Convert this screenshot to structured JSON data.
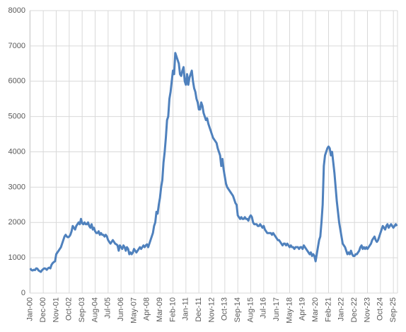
{
  "chart_data": {
    "type": "line",
    "color": "#4f81bd",
    "grid": true,
    "ylim": [
      0,
      8000
    ],
    "yticks": [
      0,
      1000,
      2000,
      3000,
      4000,
      5000,
      6000,
      7000,
      8000
    ],
    "categories": [
      "Jan-00",
      null,
      null,
      null,
      null,
      null,
      null,
      null,
      null,
      null,
      null,
      "Dec-00",
      null,
      null,
      null,
      null,
      null,
      null,
      null,
      null,
      null,
      null,
      "Nov-01",
      null,
      null,
      null,
      null,
      null,
      null,
      null,
      null,
      null,
      null,
      "Oct-02",
      null,
      null,
      null,
      null,
      null,
      null,
      null,
      null,
      null,
      null,
      "Sep-03",
      null,
      null,
      null,
      null,
      null,
      null,
      null,
      null,
      null,
      null,
      "Aug-04",
      null,
      null,
      null,
      null,
      null,
      null,
      null,
      null,
      null,
      null,
      "Jul-05",
      null,
      null,
      null,
      null,
      null,
      null,
      null,
      null,
      null,
      null,
      "Jun-06",
      null,
      null,
      null,
      null,
      null,
      null,
      null,
      null,
      null,
      null,
      "May-07",
      null,
      null,
      null,
      null,
      null,
      null,
      null,
      null,
      null,
      null,
      "Apr-08",
      null,
      null,
      null,
      null,
      null,
      null,
      null,
      null,
      null,
      null,
      "Mar-09",
      null,
      null,
      null,
      null,
      null,
      null,
      null,
      null,
      null,
      null,
      "Feb-10",
      null,
      null,
      null,
      null,
      null,
      null,
      null,
      null,
      null,
      null,
      "Jan-11",
      null,
      null,
      null,
      null,
      null,
      null,
      null,
      null,
      null,
      null,
      "Dec-11",
      null,
      null,
      null,
      null,
      null,
      null,
      null,
      null,
      null,
      null,
      "Nov-12",
      null,
      null,
      null,
      null,
      null,
      null,
      null,
      null,
      null,
      null,
      "Oct-13",
      null,
      null,
      null,
      null,
      null,
      null,
      null,
      null,
      null,
      null,
      "Sep-14",
      null,
      null,
      null,
      null,
      null,
      null,
      null,
      null,
      null,
      null,
      "Aug-15",
      null,
      null,
      null,
      null,
      null,
      null,
      null,
      null,
      null,
      null,
      "Jul-16",
      null,
      null,
      null,
      null,
      null,
      null,
      null,
      null,
      null,
      null,
      "Jun-17",
      null,
      null,
      null,
      null,
      null,
      null,
      null,
      null,
      null,
      null,
      "May-18",
      null,
      null,
      null,
      null,
      null,
      null,
      null,
      null,
      null,
      null,
      "Apr-19",
      null,
      null,
      null,
      null,
      null,
      null,
      null,
      null,
      null,
      null,
      "Mar-20",
      null,
      null,
      null,
      null,
      null,
      null,
      null,
      null,
      null,
      null,
      "Feb-21",
      null,
      null,
      null,
      null,
      null,
      null,
      null,
      null,
      null,
      null,
      "Jan-22",
      null,
      null,
      null,
      null,
      null,
      null,
      null,
      null,
      null,
      null,
      "Dec-22",
      null,
      null,
      null,
      null,
      null,
      null,
      null,
      null,
      null,
      null,
      "Nov-23",
      null,
      null,
      null,
      null,
      null,
      null,
      null,
      null,
      null,
      null,
      "Oct-24",
      null,
      null,
      null,
      null,
      null,
      null,
      null,
      null,
      null,
      null,
      "Sep-25",
      null,
      null,
      null
    ],
    "values": [
      700,
      650,
      640,
      660,
      650,
      700,
      690,
      640,
      620,
      600,
      650,
      680,
      700,
      690,
      660,
      700,
      720,
      700,
      800,
      850,
      880,
      900,
      1100,
      1150,
      1200,
      1250,
      1300,
      1400,
      1500,
      1600,
      1650,
      1600,
      1580,
      1600,
      1650,
      1750,
      1900,
      1850,
      1800,
      1900,
      1950,
      2000,
      1950,
      2100,
      1980,
      1950,
      2000,
      1950,
      1950,
      2000,
      1900,
      1850,
      1950,
      1800,
      1850,
      1750,
      1700,
      1700,
      1750,
      1650,
      1700,
      1650,
      1650,
      1600,
      1650,
      1600,
      1500,
      1450,
      1400,
      1450,
      1500,
      1450,
      1400,
      1380,
      1350,
      1200,
      1350,
      1300,
      1250,
      1350,
      1300,
      1200,
      1300,
      1250,
      1100,
      1150,
      1100,
      1150,
      1250,
      1200,
      1150,
      1200,
      1250,
      1300,
      1250,
      1300,
      1350,
      1300,
      1350,
      1380,
      1300,
      1400,
      1500,
      1600,
      1700,
      1900,
      2000,
      2300,
      2250,
      2500,
      2700,
      3000,
      3200,
      3700,
      4000,
      4400,
      4900,
      5000,
      5500,
      5700,
      6000,
      6300,
      6200,
      6800,
      6700,
      6600,
      6500,
      6200,
      6150,
      6300,
      6400,
      6000,
      5900,
      6200,
      5900,
      6100,
      6200,
      6300,
      6000,
      5800,
      5700,
      5500,
      5400,
      5200,
      5200,
      5400,
      5300,
      5100,
      5000,
      4900,
      4950,
      4800,
      4700,
      4600,
      4500,
      4400,
      4350,
      4300,
      4250,
      4100,
      4000,
      3900,
      3600,
      3800,
      3500,
      3300,
      3100,
      3000,
      2950,
      2900,
      2850,
      2800,
      2750,
      2650,
      2550,
      2500,
      2200,
      2150,
      2100,
      2150,
      2100,
      2100,
      2150,
      2100,
      2100,
      2050,
      2150,
      2200,
      2150,
      2000,
      1950,
      1950,
      1950,
      1900,
      1900,
      1950,
      1900,
      1850,
      1900,
      1800,
      1750,
      1700,
      1700,
      1700,
      1700,
      1650,
      1700,
      1650,
      1600,
      1550,
      1500,
      1500,
      1450,
      1400,
      1350,
      1400,
      1400,
      1350,
      1400,
      1350,
      1300,
      1350,
      1300,
      1300,
      1250,
      1300,
      1300,
      1300,
      1250,
      1300,
      1300,
      1250,
      1350,
      1300,
      1250,
      1200,
      1150,
      1100,
      1150,
      1050,
      1100,
      1050,
      900,
      1100,
      1300,
      1500,
      1600,
      2000,
      2500,
      3600,
      3900,
      4000,
      4100,
      4150,
      4100,
      3900,
      4000,
      3700,
      3400,
      3000,
      2600,
      2300,
      2000,
      1800,
      1600,
      1400,
      1350,
      1300,
      1200,
      1100,
      1150,
      1100,
      1200,
      1100,
      1050,
      1050,
      1100,
      1100,
      1150,
      1200,
      1300,
      1350,
      1250,
      1300,
      1250,
      1300,
      1250,
      1300,
      1350,
      1400,
      1500,
      1550,
      1600,
      1500,
      1450,
      1500,
      1600,
      1700,
      1800,
      1900,
      1850,
      1800,
      1900,
      1950,
      1850,
      1900,
      1950,
      1900,
      1850,
      1900,
      1950,
      1900
    ]
  }
}
